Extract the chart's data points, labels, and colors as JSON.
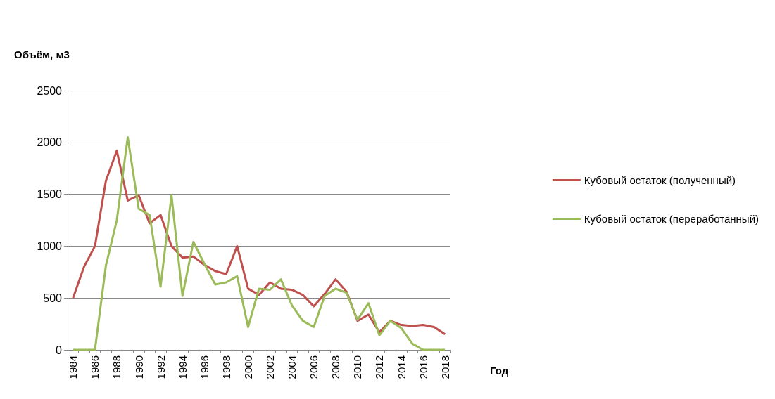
{
  "chart_data": {
    "type": "line",
    "ylabel": "Объём, м3",
    "xlabel": "Год",
    "categories": [
      "1984",
      null,
      "1986",
      null,
      "1988",
      null,
      "1990",
      null,
      "1992",
      null,
      "1994",
      null,
      "1996",
      null,
      "1998",
      null,
      "2000",
      null,
      "2002",
      null,
      "2004",
      null,
      "2006",
      null,
      "2008",
      null,
      "2010",
      null,
      "2012",
      null,
      "2014",
      null,
      "2016",
      null,
      "2018"
    ],
    "series": [
      {
        "name": "Кубовый остаток (полученный)",
        "color": "#c0504d",
        "values": [
          500,
          800,
          1000,
          1630,
          1920,
          1440,
          1490,
          1220,
          1300,
          1000,
          890,
          900,
          820,
          760,
          730,
          1000,
          590,
          530,
          650,
          590,
          580,
          530,
          420,
          540,
          680,
          560,
          280,
          340,
          170,
          280,
          240,
          230,
          240,
          220,
          150
        ]
      },
      {
        "name": "Кубовый остаток (переработанный)",
        "color": "#9bbb59",
        "values": [
          0,
          0,
          0,
          810,
          1250,
          2050,
          1360,
          1300,
          610,
          1490,
          520,
          1040,
          830,
          630,
          650,
          710,
          220,
          590,
          580,
          680,
          430,
          280,
          220,
          520,
          590,
          550,
          290,
          450,
          140,
          280,
          210,
          60,
          0,
          0,
          0
        ]
      }
    ],
    "ylim": [
      0,
      2500
    ],
    "yticks": [
      0,
      500,
      1000,
      1500,
      2000,
      2500
    ],
    "grid": "y",
    "legend": "right",
    "marker": "none",
    "line_style": "solid"
  }
}
